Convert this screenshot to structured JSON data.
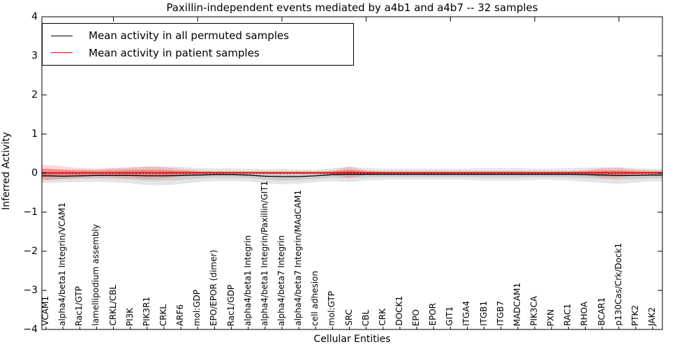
{
  "legend": {
    "items": [
      {
        "label": "Mean activity in all permuted samples",
        "color": "#000000"
      },
      {
        "label": "Mean activity in patient samples",
        "color": "#ff0000"
      }
    ]
  },
  "chart_data": {
    "type": "line",
    "title": "Paxillin-independent events mediated by a4b1 and a4b7 -- 32 samples",
    "xlabel": "Cellular Entities",
    "ylabel": "Inferred Activity",
    "ylim": [
      -4,
      4
    ],
    "yticks": [
      4,
      3,
      2,
      1,
      0,
      -1,
      -2,
      -3,
      -4
    ],
    "grid": false,
    "legend_position": "upper left",
    "zero_line": {
      "style": "dotted",
      "color": "#000000",
      "y": 0
    },
    "categories": [
      "VCAM1",
      "alpha4/beta1 Integrin/VCAM1",
      "Rac1/GTP",
      "lamellipodium assembly",
      "CRKL/CBL",
      "PI3K",
      "PIK3R1",
      "CRKL",
      "ARF6",
      "mol:GDP",
      "EPO/EPOR (dimer)",
      "Rac1/GDP",
      "alpha4/beta1 Integrin",
      "alpha4/beta1 Integrin/Paxillin/GIT1",
      "alpha4/beta7 Integrin",
      "alpha4/beta7 Integrin/MAdCAM1",
      "cell adhesion",
      "mol:GTP",
      "SRC",
      "CBL",
      "CRK",
      "DOCK1",
      "EPO",
      "EPOR",
      "GIT1",
      "ITGA4",
      "ITGB1",
      "ITGB7",
      "MADCAM1",
      "PIK3CA",
      "PXN",
      "RAC1",
      "RHOA",
      "BCAR1",
      "p130Cas/Crk/Dock1",
      "PTK2",
      "JAK2"
    ],
    "series": [
      {
        "name": "Mean activity in all permuted samples",
        "color": "#000000",
        "band_color": "rgba(0,0,0,0.10)",
        "values": [
          -0.07,
          -0.08,
          -0.07,
          -0.06,
          -0.06,
          -0.06,
          -0.07,
          -0.07,
          -0.06,
          -0.05,
          -0.04,
          -0.04,
          -0.05,
          -0.08,
          -0.09,
          -0.09,
          -0.07,
          -0.04,
          -0.03,
          -0.03,
          -0.03,
          -0.03,
          -0.03,
          -0.03,
          -0.03,
          -0.03,
          -0.03,
          -0.03,
          -0.03,
          -0.03,
          -0.03,
          -0.03,
          -0.04,
          -0.05,
          -0.06,
          -0.06,
          -0.05
        ],
        "std": [
          0.09,
          0.08,
          0.08,
          0.08,
          0.09,
          0.1,
          0.12,
          0.12,
          0.11,
          0.09,
          0.08,
          0.08,
          0.08,
          0.09,
          0.1,
          0.09,
          0.08,
          0.08,
          0.1,
          0.08,
          0.07,
          0.07,
          0.07,
          0.07,
          0.07,
          0.07,
          0.08,
          0.08,
          0.08,
          0.07,
          0.07,
          0.08,
          0.09,
          0.1,
          0.11,
          0.09,
          0.08
        ]
      },
      {
        "name": "Mean activity in patient samples",
        "color": "#ff0000",
        "band_color": "rgba(255,0,0,0.16)",
        "band_color_inner": "rgba(255,0,0,0.26)",
        "values": [
          0.01,
          0.01,
          0.01,
          0.01,
          0.01,
          0.01,
          0.01,
          0.01,
          0.01,
          0.01,
          0.01,
          0.01,
          0.01,
          0.01,
          0.01,
          0.01,
          0.01,
          0.01,
          0.02,
          0.01,
          0.01,
          0.01,
          0.01,
          0.01,
          0.01,
          0.01,
          0.01,
          0.01,
          0.01,
          0.01,
          0.01,
          0.01,
          0.01,
          0.01,
          0.01,
          0.01,
          0.01
        ],
        "std": [
          0.1,
          0.08,
          0.06,
          0.05,
          0.06,
          0.07,
          0.08,
          0.07,
          0.05,
          0.03,
          0.02,
          0.02,
          0.02,
          0.02,
          0.02,
          0.02,
          0.02,
          0.03,
          0.07,
          0.03,
          0.02,
          0.02,
          0.02,
          0.02,
          0.02,
          0.02,
          0.02,
          0.02,
          0.02,
          0.02,
          0.02,
          0.02,
          0.03,
          0.06,
          0.06,
          0.04,
          0.03
        ]
      }
    ]
  }
}
